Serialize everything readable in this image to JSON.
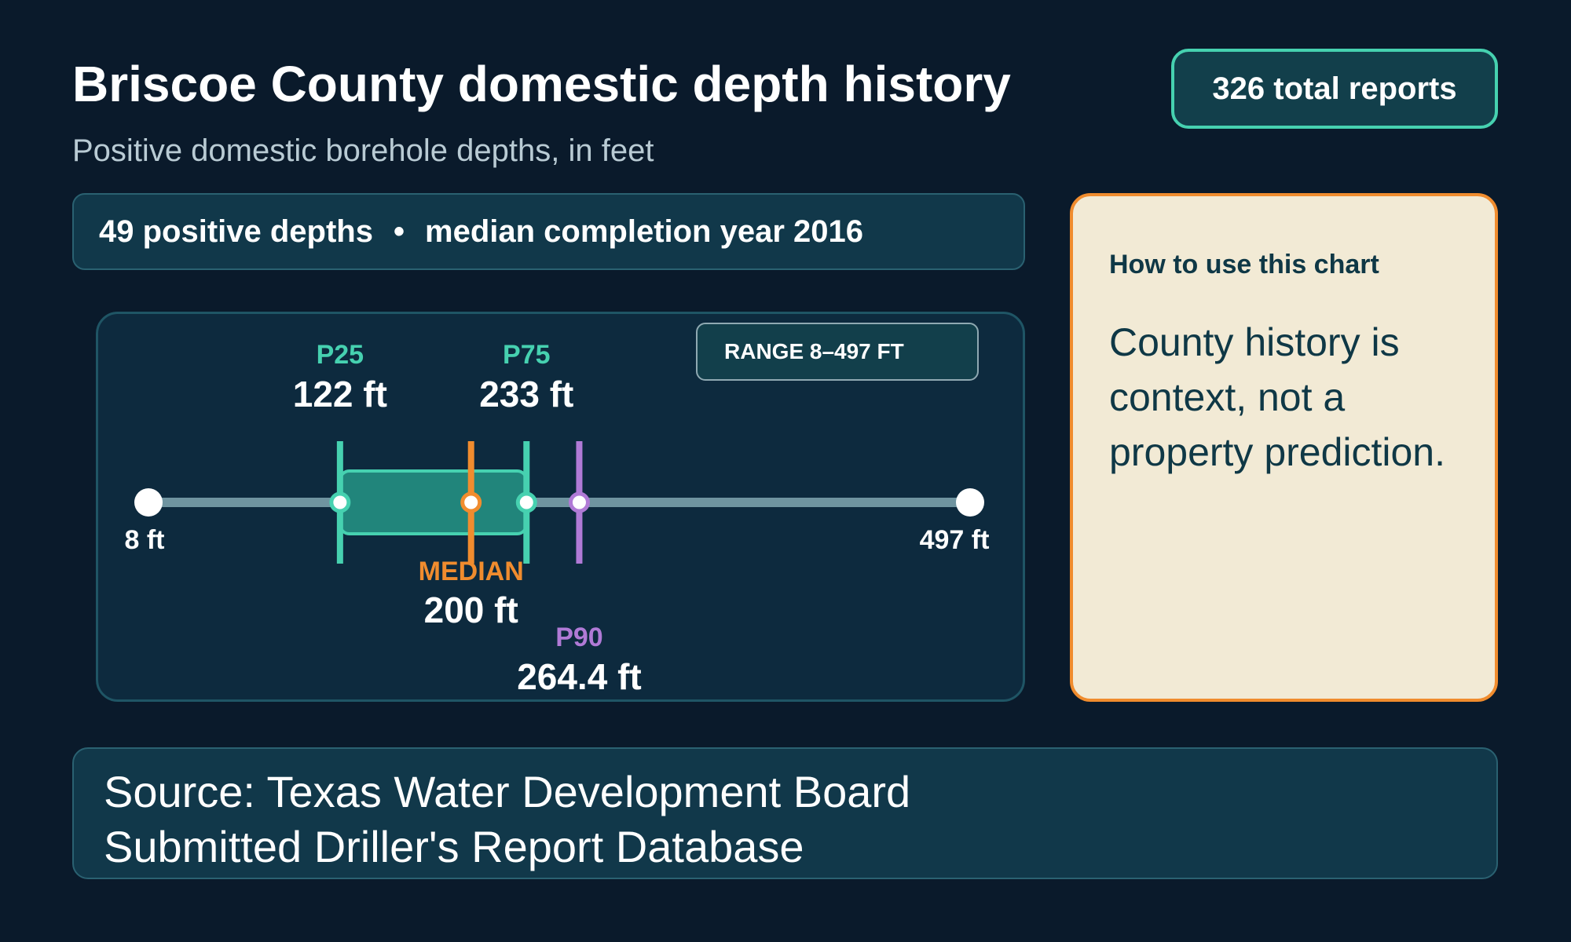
{
  "header": {
    "title": "Briscoe County domestic depth history",
    "subtitle": "Positive domestic borehole depths, in feet",
    "total_badge": "326 total reports"
  },
  "stats": {
    "positive_depths": "49 positive depths",
    "separator": "•",
    "median_year": "median completion year 2016"
  },
  "range_badge": "RANGE 8–497 FT",
  "note": {
    "heading": "How to use this chart",
    "body": "County history is context, not a property prediction."
  },
  "source": {
    "line1": "Source: Texas Water Development Board",
    "line2": "Submitted Driller's Report Database"
  },
  "colors": {
    "quartile": "#46d1b0",
    "median": "#f08c2e",
    "p90": "#b07ad6",
    "track": "#6f94a0",
    "box_fill": "#21857b"
  },
  "chart_data": {
    "type": "box",
    "unit": "ft",
    "min": 8,
    "max": 497,
    "p25": 122,
    "median": 200,
    "p75": 233,
    "p90": 264.4,
    "labels": {
      "min": "8 ft",
      "max": "497 ft",
      "p25_name": "P25",
      "p25_value": "122 ft",
      "p75_name": "P75",
      "p75_value": "233 ft",
      "median_name": "MEDIAN",
      "median_value": "200 ft",
      "p90_name": "P90",
      "p90_value": "264.4 ft"
    }
  }
}
